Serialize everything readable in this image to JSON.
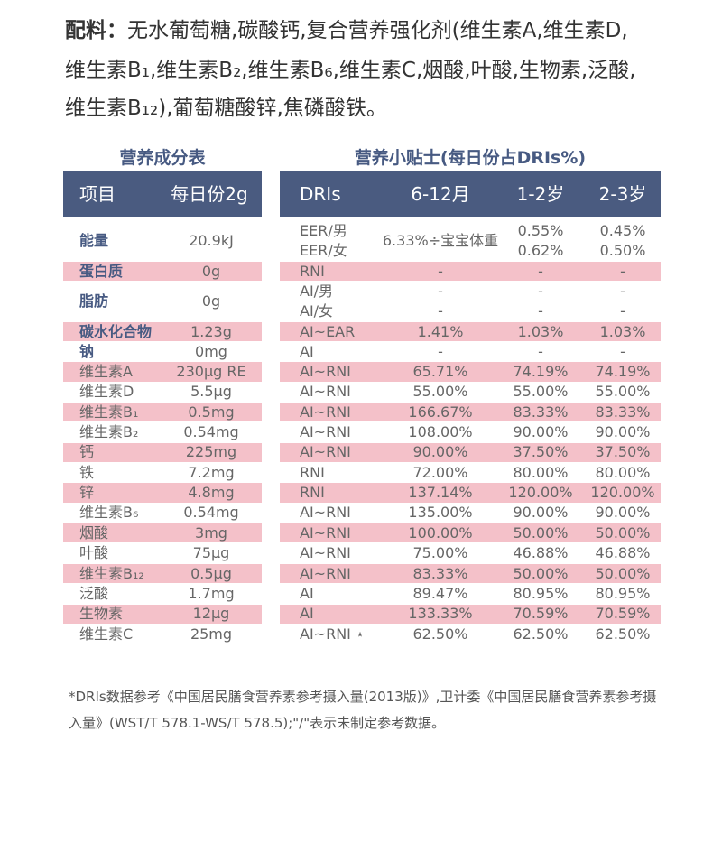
{
  "ingredients": {
    "label": "配料：",
    "lines": [
      "无水葡萄糖,碳酸钙,复合营养强化剂(维生素A,维生素D,",
      "维生素B₁,维生素B₂,维生素B₆,维生素C,烟酸,叶酸,生物素,泛酸,",
      "维生素B₁₂),葡萄糖酸锌,焦磷酸铁。"
    ]
  },
  "nutrition_table": {
    "title": "营养成分表",
    "header": [
      "项目",
      "每日份2g"
    ],
    "rows": [
      [
        "能量",
        "20.9kJ"
      ],
      [
        "蛋白质",
        "0g"
      ],
      [
        "脂肪",
        "0g"
      ],
      [
        "碳水化合物",
        "1.23g"
      ],
      [
        "钠",
        "0mg"
      ],
      [
        "维生素A",
        "230μg RE"
      ],
      [
        "维生素D",
        "5.5μg"
      ],
      [
        "维生素B₁",
        "0.5mg"
      ],
      [
        "维生素B₂",
        "0.54mg"
      ],
      [
        "钙",
        "225mg"
      ],
      [
        "铁",
        "7.2mg"
      ],
      [
        "锌",
        "4.8mg"
      ],
      [
        "维生素B₆",
        "0.54mg"
      ],
      [
        "烟酸",
        "3mg"
      ],
      [
        "叶酸",
        "75μg"
      ],
      [
        "维生素B₁₂",
        "0.5μg"
      ],
      [
        "泛酸",
        "1.7mg"
      ],
      [
        "生物素",
        "12μg"
      ],
      [
        "维生素C",
        "25mg"
      ]
    ]
  },
  "tips_table": {
    "title": "营养小贴士(每日份占DRIs%)",
    "header": [
      "DRIs",
      "6-12月",
      "1-2岁",
      "2-3岁"
    ],
    "rows": [
      [
        "EER/男\nEER/女",
        "6.33%÷宝宝体重",
        "0.55%\n0.62%",
        "0.45%\n0.50%"
      ],
      [
        "RNI",
        "-",
        "-",
        "-"
      ],
      [
        "AI/男\nAI/女",
        "-\n-",
        "-\n-",
        "-\n-"
      ],
      [
        "AI~EAR",
        "1.41%",
        "1.03%",
        "1.03%"
      ],
      [
        "AI",
        "-",
        "-",
        "-"
      ],
      [
        "AI~RNI",
        "65.71%",
        "74.19%",
        "74.19%"
      ],
      [
        "AI~RNI",
        "55.00%",
        "55.00%",
        "55.00%"
      ],
      [
        "AI~RNI",
        "166.67%",
        "83.33%",
        "83.33%"
      ],
      [
        "AI~RNI",
        "108.00%",
        "90.00%",
        "90.00%"
      ],
      [
        "AI~RNI",
        "90.00%",
        "37.50%",
        "37.50%"
      ],
      [
        "RNI",
        "72.00%",
        "80.00%",
        "80.00%"
      ],
      [
        "RNI",
        "137.14%",
        "120.00%",
        "120.00%"
      ],
      [
        "AI~RNI",
        "135.00%",
        "90.00%",
        "90.00%"
      ],
      [
        "AI~RNI",
        "100.00%",
        "50.00%",
        "50.00%"
      ],
      [
        "AI~RNI",
        "75.00%",
        "46.88%",
        "46.88%"
      ],
      [
        "AI~RNI",
        "83.33%",
        "50.00%",
        "50.00%"
      ],
      [
        "AI",
        "89.47%",
        "80.95%",
        "80.95%"
      ],
      [
        "AI",
        "133.33%",
        "70.59%",
        "70.59%"
      ],
      [
        "AI~RNI ⋆",
        "62.50%",
        "62.50%",
        "62.50%"
      ]
    ]
  },
  "footnote": "*DRIs数据参考《中国居民膳食营养素参考摄入量(2013版)》,卫计委《中国居民膳食营养素参考摄入量》(WST/T 578.1-WS/T 578.5);\"/\"表示未制定参考数据。"
}
